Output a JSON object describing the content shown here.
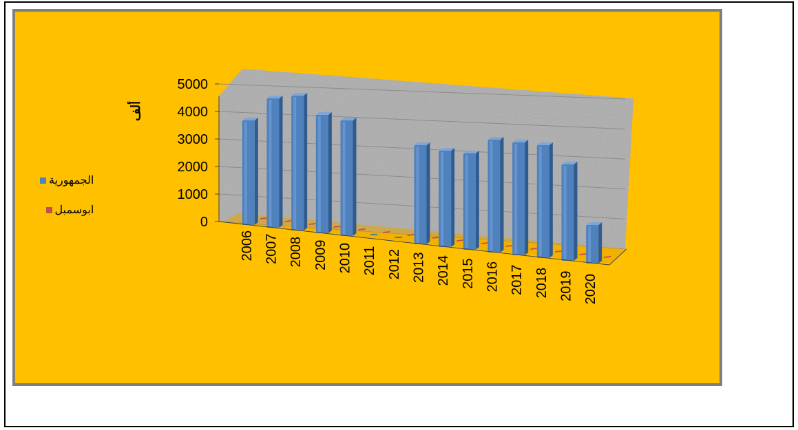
{
  "chart_data": {
    "type": "bar",
    "subtype": "3d-clustered-column",
    "y_unit_label": "ألف",
    "categories": [
      "2006",
      "2007",
      "2008",
      "2009",
      "2010",
      "2011",
      "2012",
      "2013",
      "2014",
      "2015",
      "2016",
      "2017",
      "2018",
      "2019",
      "2020"
    ],
    "series": [
      {
        "name": "الجمهورية",
        "color": "#4f81bd",
        "values": [
          3800,
          4700,
          4900,
          4300,
          4200,
          0,
          0,
          3600,
          3500,
          3500,
          4100,
          4100,
          4100,
          3500,
          1400
        ]
      },
      {
        "name": "ابوسمبل",
        "color": "#c0504d",
        "values": [
          0,
          0,
          0,
          0,
          0,
          0,
          0,
          0,
          0,
          0,
          0,
          0,
          0,
          0,
          0
        ]
      }
    ],
    "ylim": [
      0,
      5000
    ],
    "yticks": [
      "0",
      "1000",
      "2000",
      "3000",
      "4000",
      "5000"
    ],
    "grid": true,
    "legend_position": "left",
    "colors": {
      "chart_background": "#ffc000",
      "plot_wall": "#a6a6a6",
      "frame": "#7f7f7f"
    }
  }
}
